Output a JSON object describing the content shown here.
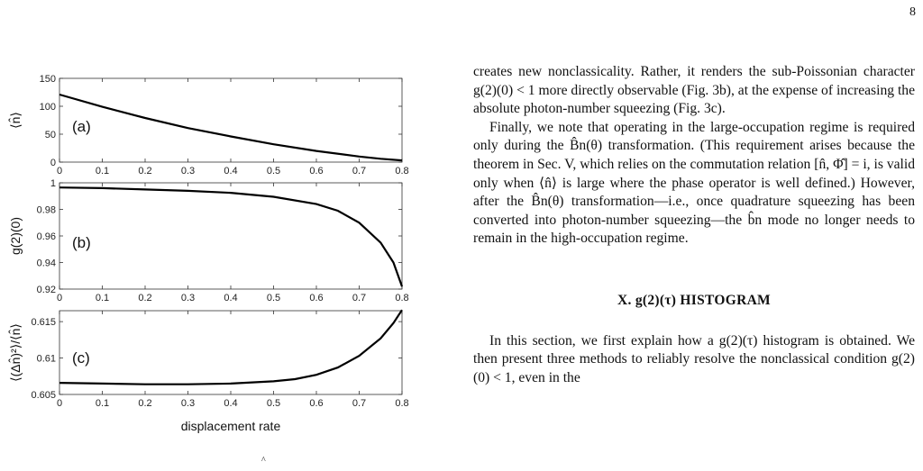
{
  "page_number": "8",
  "figure": {
    "xlabel": "displacement rate",
    "x_ticks": [
      "0",
      "0.1",
      "0.2",
      "0.3",
      "0.4",
      "0.5",
      "0.6",
      "0.7",
      "0.8"
    ],
    "panels": [
      {
        "label": "(a)",
        "ylabel": "⟨n̂⟩",
        "y_ticks": [
          "0",
          "50",
          "100",
          "150"
        ]
      },
      {
        "label": "(b)",
        "ylabel": "g(2)(0)",
        "y_ticks": [
          "0.92",
          "0.94",
          "0.96",
          "0.98",
          "1"
        ]
      },
      {
        "label": "(c)",
        "ylabel": "⟨(Δn̂)²⟩/⟨n̂⟩",
        "y_ticks": [
          "0.605",
          "0.61",
          "0.615"
        ]
      }
    ],
    "caption_stub": "^"
  },
  "chart_data": [
    {
      "type": "line",
      "title": "",
      "xlabel": "",
      "ylabel": "⟨n̂⟩",
      "xlim": [
        0,
        0.8
      ],
      "ylim": [
        0,
        150
      ],
      "x": [
        0,
        0.1,
        0.2,
        0.3,
        0.4,
        0.5,
        0.6,
        0.7,
        0.75,
        0.8
      ],
      "series": [
        {
          "values": [
            121,
            99,
            79,
            61,
            46,
            32,
            20,
            10,
            6,
            3
          ]
        }
      ]
    },
    {
      "type": "line",
      "title": "",
      "xlabel": "",
      "ylabel": "g(2)(0)",
      "xlim": [
        0,
        0.8
      ],
      "ylim": [
        0.92,
        1
      ],
      "x": [
        0,
        0.1,
        0.2,
        0.3,
        0.4,
        0.5,
        0.6,
        0.65,
        0.7,
        0.75,
        0.78,
        0.8
      ],
      "series": [
        {
          "values": [
            0.9965,
            0.996,
            0.995,
            0.994,
            0.9925,
            0.9895,
            0.984,
            0.979,
            0.97,
            0.955,
            0.94,
            0.922
          ]
        }
      ]
    },
    {
      "type": "line",
      "title": "",
      "xlabel": "displacement rate",
      "ylabel": "⟨(Δn̂)²⟩/⟨n̂⟩",
      "xlim": [
        0,
        0.8
      ],
      "ylim": [
        0.605,
        0.6165
      ],
      "x": [
        0,
        0.1,
        0.2,
        0.3,
        0.4,
        0.5,
        0.55,
        0.6,
        0.65,
        0.7,
        0.75,
        0.78,
        0.8
      ],
      "series": [
        {
          "values": [
            0.6066,
            0.6065,
            0.6064,
            0.6064,
            0.6065,
            0.6068,
            0.6071,
            0.6077,
            0.6087,
            0.6103,
            0.6127,
            0.6148,
            0.6166
          ]
        }
      ]
    }
  ],
  "text": {
    "p1": "creates new nonclassicality. Rather, it renders the sub-Poissonian character g(2)(0) < 1 more directly observable (Fig. 3b), at the expense of increasing the absolute photon-number squeezing (Fig. 3c).",
    "p2": "Finally, we note that operating in the large-occupation regime is required only during the B̂n(θ) transformation. (This requirement arises because the theorem in Sec. V, which relies on the commutation relation [n̂, Φ̂] = i, is valid only when ⟨n̂⟩ is large where the phase operator is well defined.) However, after the B̂n(θ) transformation—i.e., once quadrature squeezing has been converted into photon-number squeezing—the b̂n mode no longer needs to remain in the high-occupation regime.",
    "section_heading": "X.   g(2)(τ) HISTOGRAM",
    "p3": "In this section, we first explain how a g(2)(τ) histogram is obtained. We then present three methods to reliably resolve the nonclassical condition g(2)(0) < 1, even in the"
  }
}
